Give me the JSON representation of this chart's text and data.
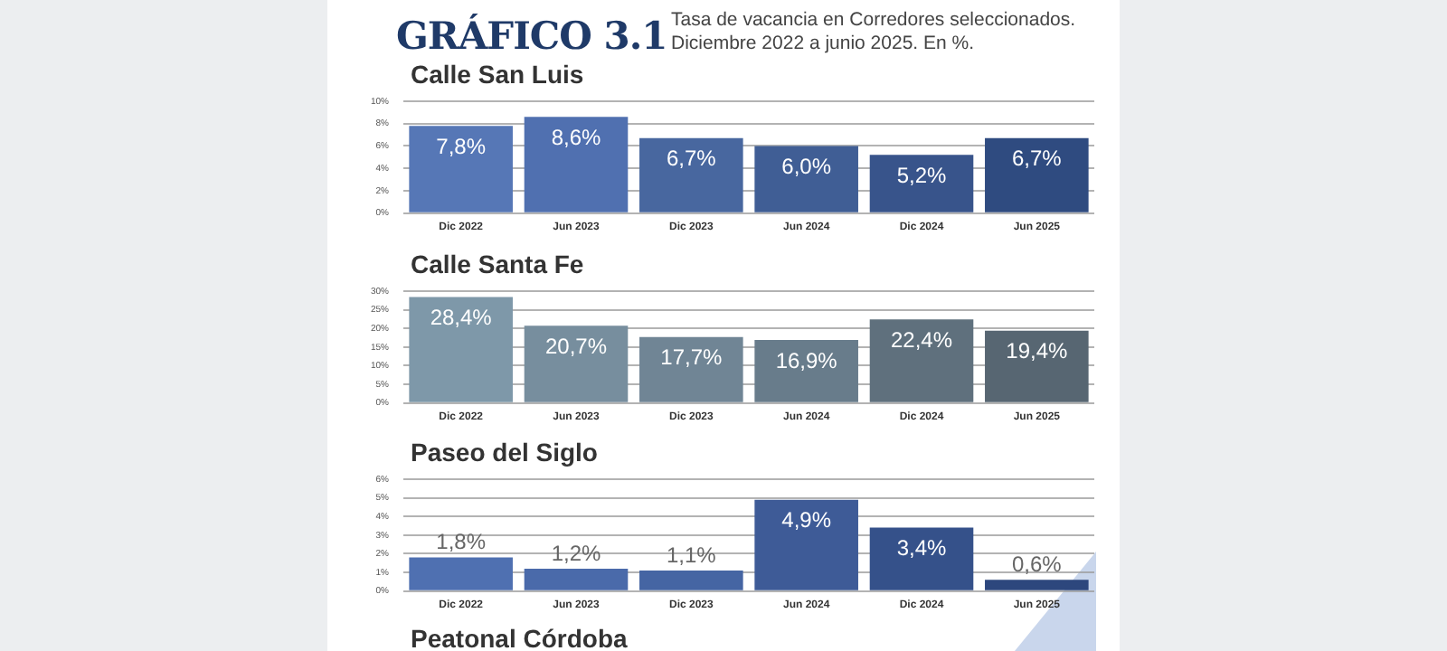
{
  "chart_data": [
    {
      "type": "bar",
      "title": "GRÁFICO 3.1",
      "subtitle": "Tasa de vacancia en Corredores seleccionados. Diciembre 2022 a junio 2025. En %.",
      "annotations": [
        "Calle San Luis"
      ],
      "categories": [
        "Dic 2022",
        "Jun 2023",
        "Dic 2023",
        "Jun 2024",
        "Dic 2024",
        "Jun 2025"
      ],
      "values": [
        7.8,
        8.6,
        6.7,
        6.0,
        5.2,
        6.7
      ],
      "colors": [
        "#5677b6",
        "#5070b0",
        "#48679f",
        "#405e95",
        "#38548b",
        "#2f4b80"
      ],
      "ylim": [
        0,
        10
      ],
      "yticks": [
        {
          "value": 0,
          "label": "0%"
        },
        {
          "value": 2,
          "label": "2%"
        },
        {
          "value": 4,
          "label": "4%"
        },
        {
          "value": 6,
          "label": "6%"
        },
        {
          "value": 8,
          "label": "8%"
        },
        {
          "value": 10,
          "label": "10%"
        }
      ],
      "value_labels": [
        "7,8%",
        "8,6%",
        "6,7%",
        "6,0%",
        "5,2%",
        "6,7%"
      ],
      "grid": "y",
      "legend": false
    },
    {
      "type": "bar",
      "title": "Calle Santa Fe",
      "categories": [
        "Dic 2022",
        "Jun 2023",
        "Dic 2023",
        "Jun 2024",
        "Dic 2024",
        "Jun 2025"
      ],
      "values": [
        28.4,
        20.7,
        17.7,
        16.9,
        22.4,
        19.4
      ],
      "colors": [
        "#7e98a9",
        "#778e9e",
        "#708595",
        "#687c8b",
        "#5f707d",
        "#576672"
      ],
      "ylim": [
        0,
        30
      ],
      "yticks": [
        {
          "value": 0,
          "label": "0%"
        },
        {
          "value": 5,
          "label": "5%"
        },
        {
          "value": 10,
          "label": "10%"
        },
        {
          "value": 15,
          "label": "15%"
        },
        {
          "value": 20,
          "label": "20%"
        },
        {
          "value": 25,
          "label": "25%"
        },
        {
          "value": 30,
          "label": "30%"
        }
      ],
      "value_labels": [
        "28,4%",
        "20,7%",
        "17,7%",
        "16,9%",
        "22,4%",
        "19,4%"
      ],
      "grid": "y",
      "legend": false
    },
    {
      "type": "bar",
      "title": "Paseo del Siglo",
      "categories": [
        "Dic 2022",
        "Jun 2023",
        "Dic 2023",
        "Jun 2024",
        "Dic 2024",
        "Jun 2025"
      ],
      "values": [
        1.8,
        1.2,
        1.1,
        4.9,
        3.4,
        0.6
      ],
      "colors": [
        "#4f70b1",
        "#4a6aaa",
        "#4565a3",
        "#3e5b97",
        "#35518a",
        "#2d477d"
      ],
      "ylim": [
        0,
        6
      ],
      "yticks": [
        {
          "value": 0,
          "label": "0%"
        },
        {
          "value": 1,
          "label": "1%"
        },
        {
          "value": 2,
          "label": "2%"
        },
        {
          "value": 3,
          "label": "3%"
        },
        {
          "value": 4,
          "label": "4%"
        },
        {
          "value": 5,
          "label": "5%"
        },
        {
          "value": 6,
          "label": "6%"
        }
      ],
      "value_labels": [
        "1,8%",
        "1,2%",
        "1,1%",
        "4,9%",
        "3,4%",
        "0,6%"
      ],
      "grid": "y",
      "legend": false
    },
    {
      "type": "other",
      "title": "Peatonal Córdoba"
    }
  ]
}
